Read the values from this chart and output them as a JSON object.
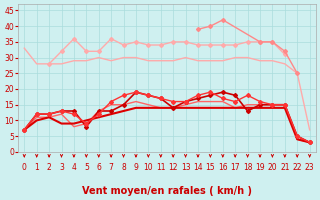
{
  "title": "",
  "xlabel": "Vent moyen/en rafales ( km/h )",
  "background_color": "#cff0f0",
  "grid_color": "#aadddd",
  "x": [
    0,
    1,
    2,
    3,
    4,
    5,
    6,
    7,
    8,
    9,
    10,
    11,
    12,
    13,
    14,
    15,
    16,
    17,
    18,
    19,
    20,
    21,
    22,
    23
  ],
  "lines": [
    {
      "y": [
        33,
        28,
        28,
        28,
        29,
        29,
        30,
        29,
        30,
        30,
        29,
        29,
        29,
        30,
        29,
        29,
        29,
        30,
        30,
        29,
        29,
        28,
        25,
        7
      ],
      "color": "#ffaaaa",
      "lw": 1.0,
      "marker": null,
      "zorder": 2
    },
    {
      "y": [
        null,
        null,
        28,
        32,
        36,
        32,
        32,
        36,
        34,
        35,
        34,
        34,
        35,
        35,
        34,
        34,
        34,
        34,
        35,
        35,
        35,
        31,
        null,
        null
      ],
      "color": "#ffaaaa",
      "lw": 1.0,
      "marker": "D",
      "ms": 2,
      "zorder": 2
    },
    {
      "y": [
        null,
        null,
        null,
        null,
        null,
        null,
        null,
        null,
        null,
        null,
        null,
        null,
        null,
        null,
        39,
        40,
        42,
        null,
        null,
        35,
        35,
        32,
        25,
        null
      ],
      "color": "#ff8888",
      "lw": 1.0,
      "marker": "D",
      "ms": 2,
      "zorder": 2
    },
    {
      "y": [
        7,
        12,
        12,
        13,
        13,
        8,
        13,
        13,
        15,
        19,
        18,
        17,
        14,
        16,
        17,
        18,
        19,
        18,
        13,
        15,
        15,
        15,
        5,
        3
      ],
      "color": "#cc0000",
      "lw": 1.2,
      "marker": "D",
      "ms": 2,
      "zorder": 3
    },
    {
      "y": [
        7,
        12,
        12,
        13,
        12,
        9,
        12,
        16,
        18,
        19,
        18,
        17,
        16,
        16,
        18,
        19,
        17,
        16,
        18,
        16,
        15,
        15,
        5,
        3
      ],
      "color": "#ff3333",
      "lw": 1.0,
      "marker": "D",
      "ms": 2,
      "zorder": 3
    },
    {
      "y": [
        7,
        11,
        11,
        12,
        8,
        9,
        13,
        15,
        15,
        16,
        15,
        14,
        14,
        15,
        16,
        16,
        16,
        14,
        15,
        15,
        15,
        15,
        4,
        3
      ],
      "color": "#ff6666",
      "lw": 1.0,
      "marker": null,
      "zorder": 2
    },
    {
      "y": [
        7,
        10,
        11,
        9,
        9,
        10,
        11,
        12,
        13,
        14,
        14,
        14,
        14,
        14,
        14,
        14,
        14,
        14,
        14,
        14,
        14,
        14,
        4,
        3
      ],
      "color": "#dd0000",
      "lw": 1.5,
      "marker": null,
      "zorder": 2
    }
  ],
  "ylim": [
    0,
    47
  ],
  "yticks": [
    0,
    5,
    10,
    15,
    20,
    25,
    30,
    35,
    40,
    45
  ],
  "xlim": [
    -0.5,
    23.5
  ],
  "arrow_color": "#cc0000",
  "tick_fontsize": 5.5,
  "label_fontsize": 7
}
